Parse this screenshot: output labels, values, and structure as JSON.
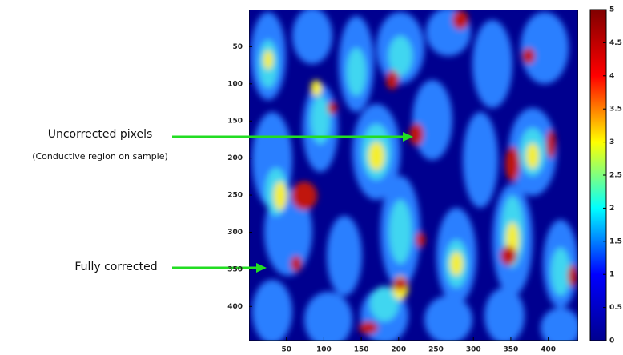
{
  "chart_data": {
    "type": "heatmap",
    "xlim": [
      0,
      440
    ],
    "xticks": [
      50,
      100,
      150,
      200,
      250,
      300,
      350,
      400
    ],
    "ylim": [
      0,
      446
    ],
    "yticks": [
      50,
      100,
      150,
      200,
      250,
      300,
      350,
      400
    ],
    "y_reversed": true,
    "colormap": "jet",
    "colorbar": {
      "lim": [
        0,
        5
      ],
      "ticks": [
        0,
        0.5,
        1,
        1.5,
        2,
        2.5,
        3,
        3.5,
        4,
        4.5,
        5
      ]
    },
    "annotations": [
      "Uncorrected pixels",
      "(Conductive region on sample)",
      "Fully corrected"
    ]
  }
}
